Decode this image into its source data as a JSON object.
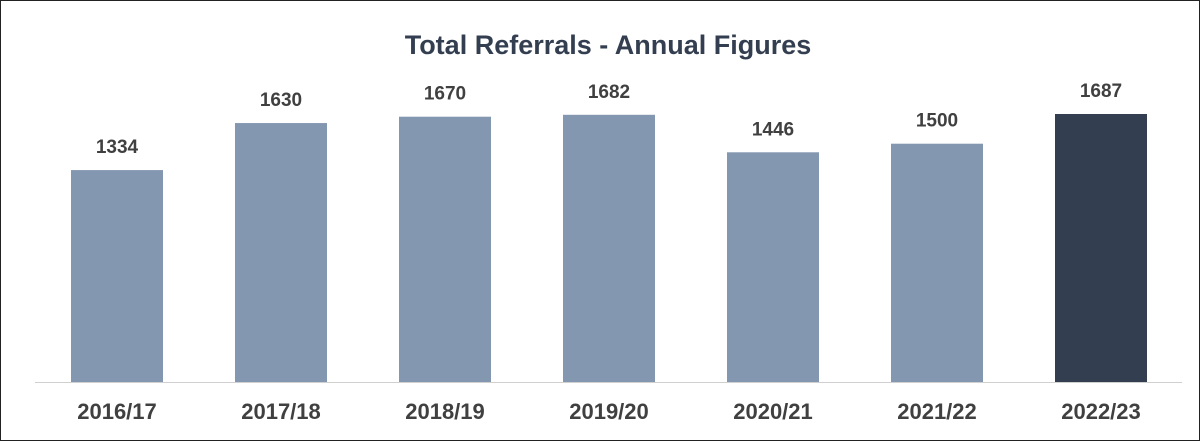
{
  "chart_data": {
    "type": "bar",
    "title": "Total Referrals - Annual Figures",
    "categories": [
      "2016/17",
      "2017/18",
      "2018/19",
      "2019/20",
      "2020/21",
      "2021/22",
      "2022/23"
    ],
    "values": [
      1334,
      1630,
      1670,
      1682,
      1446,
      1500,
      1687
    ],
    "colors": [
      "#8497b0",
      "#8497b0",
      "#8497b0",
      "#8497b0",
      "#8497b0",
      "#8497b0",
      "#333f50"
    ]
  }
}
